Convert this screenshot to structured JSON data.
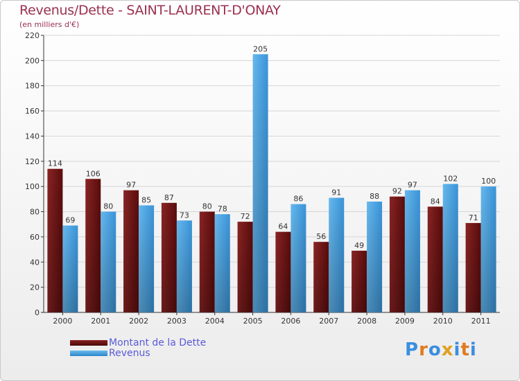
{
  "chart_data": {
    "type": "bar",
    "title": "Revenus/Dette - SAINT-LAURENT-D'ONAY",
    "subtitle": "(en milliers d'€)",
    "categories": [
      "2000",
      "2001",
      "2002",
      "2003",
      "2004",
      "2005",
      "2006",
      "2007",
      "2008",
      "2009",
      "2010",
      "2011"
    ],
    "series": [
      {
        "name": "Montant de la Dette",
        "color": "#7a1a1a",
        "values": [
          114,
          106,
          97,
          87,
          80,
          72,
          64,
          56,
          49,
          92,
          84,
          71
        ]
      },
      {
        "name": "Revenus",
        "color": "#4da6e6",
        "values": [
          69,
          80,
          85,
          73,
          78,
          205,
          86,
          91,
          88,
          97,
          102,
          100
        ]
      }
    ],
    "y_ticks": [
      0,
      20,
      40,
      60,
      80,
      100,
      120,
      140,
      160,
      180,
      200,
      220
    ],
    "ylim": [
      0,
      220
    ],
    "xlabel": "",
    "ylabel": "",
    "legend": "bottom-left"
  },
  "logo": {
    "letters": [
      "P",
      "r",
      "o",
      "x",
      "i",
      "t",
      "i"
    ],
    "colors": [
      "#3a8ee0",
      "#e07a20",
      "#3a8ee0",
      "#e0a020",
      "#3a8ee0",
      "#e07a20",
      "#3a8ee0"
    ]
  }
}
